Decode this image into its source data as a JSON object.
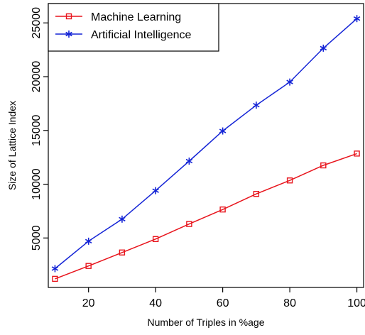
{
  "chart_data": {
    "type": "line",
    "title": "",
    "xlabel": "Number of Triples in %age",
    "ylabel": "Size of Lattice Index",
    "x": [
      10,
      20,
      30,
      40,
      50,
      60,
      70,
      80,
      90,
      100
    ],
    "xlim": [
      8,
      102
    ],
    "ylim": [
      400,
      26800
    ],
    "x_ticks": [
      20,
      40,
      60,
      80,
      100
    ],
    "y_ticks": [
      5000,
      10000,
      15000,
      20000,
      25000
    ],
    "grid": false,
    "legend_position": "top-left",
    "series": [
      {
        "name": "Machine Learning",
        "color": "#e8141c",
        "marker": "square",
        "values": [
          1200,
          2400,
          3650,
          4900,
          6300,
          7650,
          9100,
          10350,
          11750,
          12850
        ]
      },
      {
        "name": "Artificial Intelligence",
        "color": "#1424d6",
        "marker": "asterisk",
        "values": [
          2150,
          4700,
          6750,
          9400,
          12150,
          14950,
          17350,
          19500,
          22650,
          25400
        ]
      }
    ]
  }
}
